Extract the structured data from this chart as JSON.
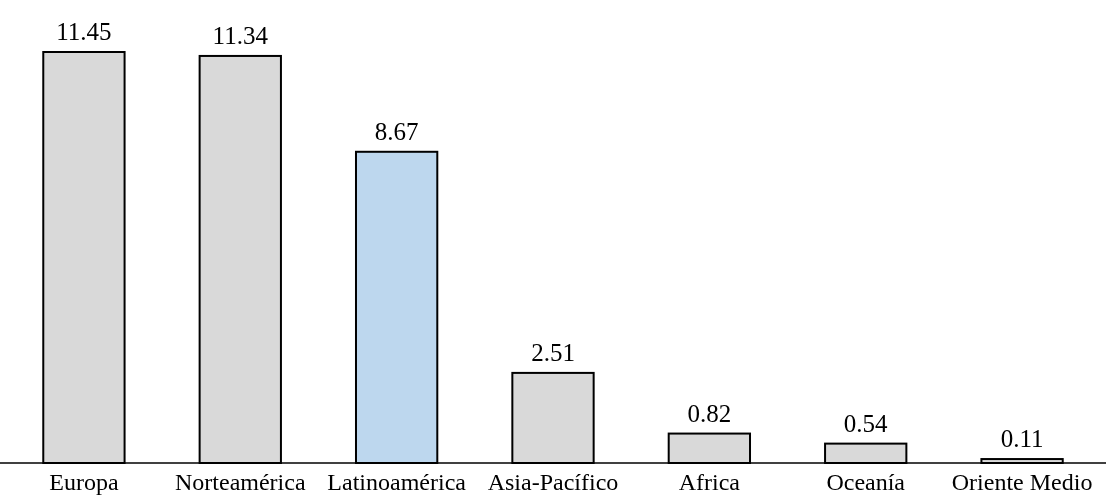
{
  "chart_data": {
    "type": "bar",
    "categories": [
      "Europa",
      "Norteamérica",
      "Latinoamérica",
      "Asia-Pacífico",
      "Africa",
      "Oceanía",
      "Oriente Medio"
    ],
    "values": [
      11.45,
      11.34,
      8.67,
      2.51,
      0.82,
      0.54,
      0.11
    ],
    "colors": [
      "#d9d9d9",
      "#d9d9d9",
      "#bdd7ee",
      "#d9d9d9",
      "#d9d9d9",
      "#d9d9d9",
      "#d9d9d9"
    ],
    "data_labels": true
  }
}
